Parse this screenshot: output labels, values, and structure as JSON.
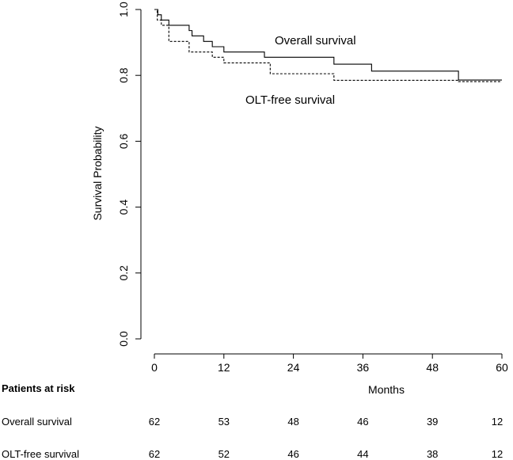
{
  "chart_data": {
    "type": "line",
    "subtype": "kaplan-meier-step",
    "ylabel": "Survival Probability",
    "xlabel": "Months",
    "xlim": [
      0,
      60
    ],
    "ylim": [
      0,
      1
    ],
    "x_ticks": [
      "0",
      "12",
      "24",
      "36",
      "48",
      "60"
    ],
    "y_ticks": [
      "0.0",
      "0.2",
      "0.4",
      "0.6",
      "0.8",
      "1.0"
    ],
    "grid": false,
    "series": [
      {
        "name": "Overall survival",
        "line_style": "solid",
        "points": [
          [
            0,
            1.0
          ],
          [
            0.6,
            0.984
          ],
          [
            1.2,
            0.968
          ],
          [
            2.5,
            0.952
          ],
          [
            6,
            0.936
          ],
          [
            6.5,
            0.92
          ],
          [
            8.5,
            0.903
          ],
          [
            10,
            0.887
          ],
          [
            12,
            0.871
          ],
          [
            19,
            0.855
          ],
          [
            31,
            0.834
          ],
          [
            37.5,
            0.813
          ],
          [
            52.5,
            0.786
          ],
          [
            60,
            0.786
          ]
        ]
      },
      {
        "name": "OLT-free survival",
        "line_style": "dashed",
        "points": [
          [
            0,
            1.0
          ],
          [
            0.5,
            0.968
          ],
          [
            1.2,
            0.952
          ],
          [
            2.5,
            0.903
          ],
          [
            6,
            0.871
          ],
          [
            10,
            0.855
          ],
          [
            12,
            0.838
          ],
          [
            20,
            0.805
          ],
          [
            31,
            0.785
          ],
          [
            52.5,
            0.781
          ],
          [
            60,
            0.781
          ]
        ]
      }
    ],
    "annotations": [
      "Overall survival",
      "OLT-free survival"
    ]
  },
  "risk_table": {
    "title": "Patients at risk",
    "rows": [
      {
        "label": "Overall survival",
        "values": [
          "62",
          "53",
          "48",
          "46",
          "39",
          "12"
        ]
      },
      {
        "label": "OLT-free survival",
        "values": [
          "62",
          "52",
          "46",
          "44",
          "38",
          "12"
        ]
      }
    ]
  }
}
